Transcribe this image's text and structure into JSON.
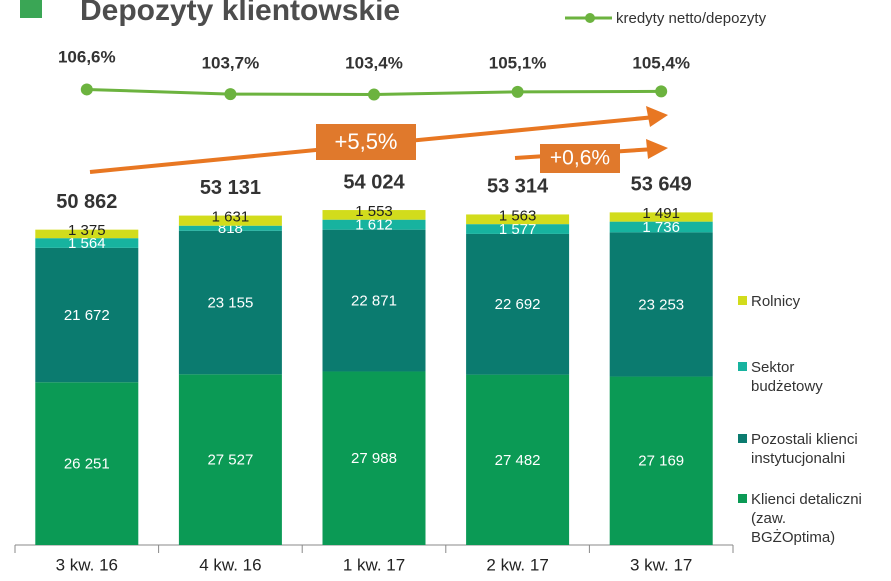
{
  "chart_data": {
    "type": "bar",
    "stacked": true,
    "title": "Depozyty klientowskie",
    "categories": [
      "3 kw. 16",
      "4 kw. 16",
      "1 kw. 17",
      "2 kw. 17",
      "3 kw. 17"
    ],
    "series": [
      {
        "name": "Klienci detaliczni (zaw. BGŻOptima)",
        "color": "#0b9a55",
        "values": [
          26251,
          27527,
          27988,
          27482,
          27169
        ],
        "value_labels": [
          "26 251",
          "27 527",
          "27 988",
          "27 482",
          "27 169"
        ]
      },
      {
        "name": "Pozostali klienci instytucjonalni",
        "color": "#0b7b6f",
        "values": [
          21672,
          23155,
          22871,
          22692,
          23253
        ],
        "value_labels": [
          "21 672",
          "23 155",
          "22 871",
          "22 692",
          "23 253"
        ]
      },
      {
        "name": "Sektor budżetowy",
        "color": "#17b39f",
        "values": [
          1564,
          818,
          1612,
          1577,
          1736
        ],
        "value_labels": [
          "1 564",
          "818",
          "1 612",
          "1 577",
          "1 736"
        ]
      },
      {
        "name": "Rolnicy",
        "color": "#d2dc1c",
        "values": [
          1375,
          1631,
          1553,
          1563,
          1491
        ],
        "value_labels": [
          "1 375",
          "1 631",
          "1 553",
          "1 563",
          "1 491"
        ]
      }
    ],
    "totals": [
      50862,
      53131,
      54024,
      53314,
      53649
    ],
    "total_labels": [
      "50 862",
      "53 131",
      "54 024",
      "53 314",
      "53 649"
    ],
    "line": {
      "type": "line",
      "name": "kredyty netto/depozyty",
      "color": "#6cb33f",
      "values": [
        106.6,
        103.7,
        103.4,
        105.1,
        105.4
      ],
      "value_labels": [
        "106,6%",
        "103,7%",
        "103,4%",
        "105,1%",
        "105,4%"
      ]
    },
    "annotations": [
      "+5,5%",
      "+0,6%"
    ]
  }
}
